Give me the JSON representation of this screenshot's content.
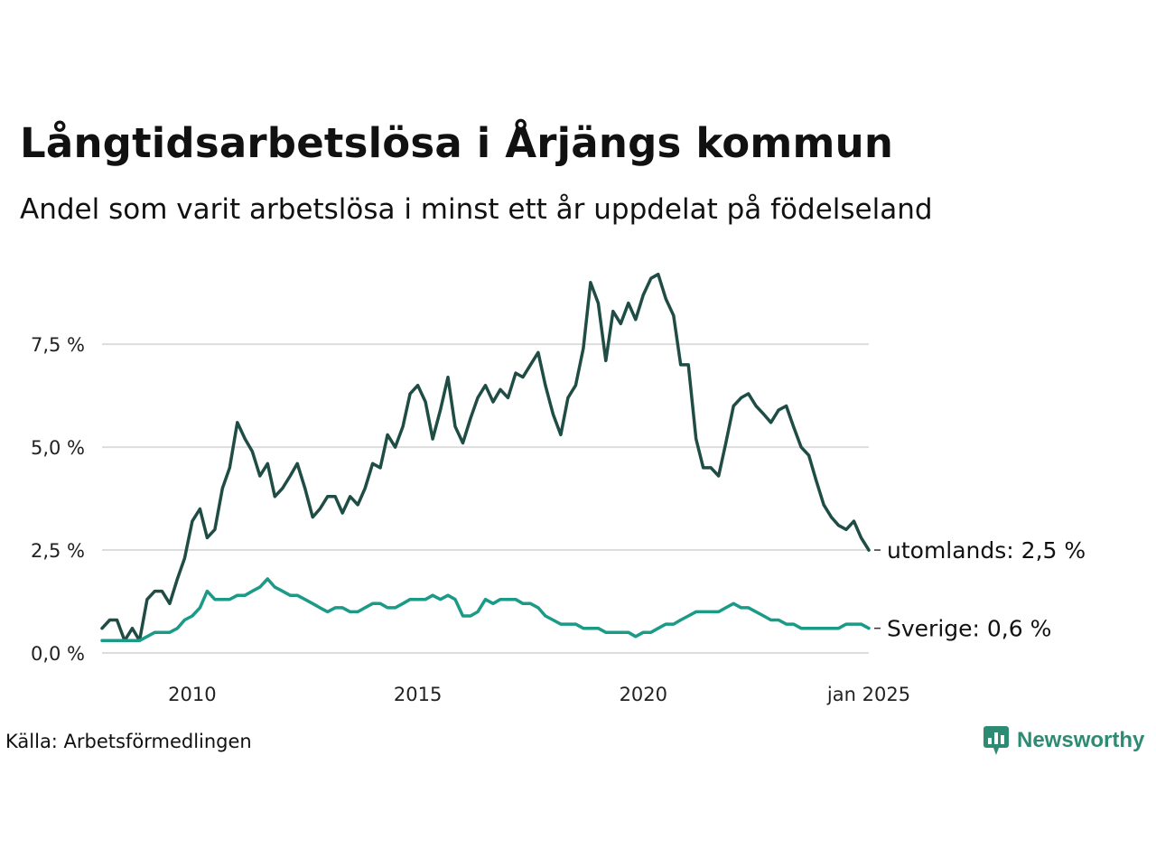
{
  "title": "Långtidsarbetslösa i Årjängs kommun",
  "subtitle": "Andel som varit arbetslösa i minst ett år uppdelat på födelseland",
  "source": "Källa: Arbetsförmedlingen",
  "brand": {
    "name": "Newsworthy",
    "logo_icon": "bar-chart-speech-bubble-icon"
  },
  "colors": {
    "utomlands": "#1f4d45",
    "sverige": "#1a9a87",
    "grid": "#dddddd",
    "brand": "#2e8b73"
  },
  "chart_data": {
    "type": "line",
    "title": "Långtidsarbetslösa i Årjängs kommun",
    "subtitle": "Andel som varit arbetslösa i minst ett år uppdelat på födelseland",
    "xlabel": "",
    "ylabel": "",
    "xlim": [
      2008.0,
      2025.0
    ],
    "ylim": [
      0,
      9.5
    ],
    "x_ticks": [
      {
        "x": 2010,
        "label": "2010"
      },
      {
        "x": 2015,
        "label": "2015"
      },
      {
        "x": 2020,
        "label": "2020"
      },
      {
        "x": 2025,
        "label": "jan 2025"
      }
    ],
    "y_ticks": [
      {
        "y": 0,
        "label": "0,0 %"
      },
      {
        "y": 2.5,
        "label": "2,5 %"
      },
      {
        "y": 5,
        "label": "5,0 %"
      },
      {
        "y": 7.5,
        "label": "7,5 %"
      }
    ],
    "grid": true,
    "series": [
      {
        "name": "utomlands",
        "end_label": "utomlands: 2,5 %",
        "color": "#1f4d45",
        "points": [
          [
            2008.0,
            0.6
          ],
          [
            2008.17,
            0.8
          ],
          [
            2008.33,
            0.8
          ],
          [
            2008.5,
            0.3
          ],
          [
            2008.67,
            0.6
          ],
          [
            2008.83,
            0.3
          ],
          [
            2009.0,
            1.3
          ],
          [
            2009.17,
            1.5
          ],
          [
            2009.33,
            1.5
          ],
          [
            2009.5,
            1.2
          ],
          [
            2009.67,
            1.8
          ],
          [
            2009.83,
            2.3
          ],
          [
            2010.0,
            3.2
          ],
          [
            2010.17,
            3.5
          ],
          [
            2010.33,
            2.8
          ],
          [
            2010.5,
            3.0
          ],
          [
            2010.67,
            4.0
          ],
          [
            2010.83,
            4.5
          ],
          [
            2011.0,
            5.6
          ],
          [
            2011.17,
            5.2
          ],
          [
            2011.33,
            4.9
          ],
          [
            2011.5,
            4.3
          ],
          [
            2011.67,
            4.6
          ],
          [
            2011.83,
            3.8
          ],
          [
            2012.0,
            4.0
          ],
          [
            2012.17,
            4.3
          ],
          [
            2012.33,
            4.6
          ],
          [
            2012.5,
            4.0
          ],
          [
            2012.67,
            3.3
          ],
          [
            2012.83,
            3.5
          ],
          [
            2013.0,
            3.8
          ],
          [
            2013.17,
            3.8
          ],
          [
            2013.33,
            3.4
          ],
          [
            2013.5,
            3.8
          ],
          [
            2013.67,
            3.6
          ],
          [
            2013.83,
            4.0
          ],
          [
            2014.0,
            4.6
          ],
          [
            2014.17,
            4.5
          ],
          [
            2014.33,
            5.3
          ],
          [
            2014.5,
            5.0
          ],
          [
            2014.67,
            5.5
          ],
          [
            2014.83,
            6.3
          ],
          [
            2015.0,
            6.5
          ],
          [
            2015.17,
            6.1
          ],
          [
            2015.33,
            5.2
          ],
          [
            2015.5,
            5.9
          ],
          [
            2015.67,
            6.7
          ],
          [
            2015.83,
            5.5
          ],
          [
            2016.0,
            5.1
          ],
          [
            2016.17,
            5.7
          ],
          [
            2016.33,
            6.2
          ],
          [
            2016.5,
            6.5
          ],
          [
            2016.67,
            6.1
          ],
          [
            2016.83,
            6.4
          ],
          [
            2017.0,
            6.2
          ],
          [
            2017.17,
            6.8
          ],
          [
            2017.33,
            6.7
          ],
          [
            2017.5,
            7.0
          ],
          [
            2017.67,
            7.3
          ],
          [
            2017.83,
            6.5
          ],
          [
            2018.0,
            5.8
          ],
          [
            2018.17,
            5.3
          ],
          [
            2018.33,
            6.2
          ],
          [
            2018.5,
            6.5
          ],
          [
            2018.67,
            7.4
          ],
          [
            2018.83,
            9.0
          ],
          [
            2019.0,
            8.5
          ],
          [
            2019.17,
            7.1
          ],
          [
            2019.33,
            8.3
          ],
          [
            2019.5,
            8.0
          ],
          [
            2019.67,
            8.5
          ],
          [
            2019.83,
            8.1
          ],
          [
            2020.0,
            8.7
          ],
          [
            2020.17,
            9.1
          ],
          [
            2020.33,
            9.2
          ],
          [
            2020.5,
            8.6
          ],
          [
            2020.67,
            8.2
          ],
          [
            2020.83,
            7.0
          ],
          [
            2021.0,
            7.0
          ],
          [
            2021.17,
            5.2
          ],
          [
            2021.33,
            4.5
          ],
          [
            2021.5,
            4.5
          ],
          [
            2021.67,
            4.3
          ],
          [
            2021.83,
            5.1
          ],
          [
            2022.0,
            6.0
          ],
          [
            2022.17,
            6.2
          ],
          [
            2022.33,
            6.3
          ],
          [
            2022.5,
            6.0
          ],
          [
            2022.67,
            5.8
          ],
          [
            2022.83,
            5.6
          ],
          [
            2023.0,
            5.9
          ],
          [
            2023.17,
            6.0
          ],
          [
            2023.33,
            5.5
          ],
          [
            2023.5,
            5.0
          ],
          [
            2023.67,
            4.8
          ],
          [
            2023.83,
            4.2
          ],
          [
            2024.0,
            3.6
          ],
          [
            2024.17,
            3.3
          ],
          [
            2024.33,
            3.1
          ],
          [
            2024.5,
            3.0
          ],
          [
            2024.67,
            3.2
          ],
          [
            2024.83,
            2.8
          ],
          [
            2025.0,
            2.5
          ]
        ]
      },
      {
        "name": "Sverige",
        "end_label": "Sverige: 0,6 %",
        "color": "#1a9a87",
        "points": [
          [
            2008.0,
            0.3
          ],
          [
            2008.17,
            0.3
          ],
          [
            2008.33,
            0.3
          ],
          [
            2008.5,
            0.3
          ],
          [
            2008.67,
            0.3
          ],
          [
            2008.83,
            0.3
          ],
          [
            2009.0,
            0.4
          ],
          [
            2009.17,
            0.5
          ],
          [
            2009.33,
            0.5
          ],
          [
            2009.5,
            0.5
          ],
          [
            2009.67,
            0.6
          ],
          [
            2009.83,
            0.8
          ],
          [
            2010.0,
            0.9
          ],
          [
            2010.17,
            1.1
          ],
          [
            2010.33,
            1.5
          ],
          [
            2010.5,
            1.3
          ],
          [
            2010.67,
            1.3
          ],
          [
            2010.83,
            1.3
          ],
          [
            2011.0,
            1.4
          ],
          [
            2011.17,
            1.4
          ],
          [
            2011.33,
            1.5
          ],
          [
            2011.5,
            1.6
          ],
          [
            2011.67,
            1.8
          ],
          [
            2011.83,
            1.6
          ],
          [
            2012.0,
            1.5
          ],
          [
            2012.17,
            1.4
          ],
          [
            2012.33,
            1.4
          ],
          [
            2012.5,
            1.3
          ],
          [
            2012.67,
            1.2
          ],
          [
            2012.83,
            1.1
          ],
          [
            2013.0,
            1.0
          ],
          [
            2013.17,
            1.1
          ],
          [
            2013.33,
            1.1
          ],
          [
            2013.5,
            1.0
          ],
          [
            2013.67,
            1.0
          ],
          [
            2013.83,
            1.1
          ],
          [
            2014.0,
            1.2
          ],
          [
            2014.17,
            1.2
          ],
          [
            2014.33,
            1.1
          ],
          [
            2014.5,
            1.1
          ],
          [
            2014.67,
            1.2
          ],
          [
            2014.83,
            1.3
          ],
          [
            2015.0,
            1.3
          ],
          [
            2015.17,
            1.3
          ],
          [
            2015.33,
            1.4
          ],
          [
            2015.5,
            1.3
          ],
          [
            2015.67,
            1.4
          ],
          [
            2015.83,
            1.3
          ],
          [
            2016.0,
            0.9
          ],
          [
            2016.17,
            0.9
          ],
          [
            2016.33,
            1.0
          ],
          [
            2016.5,
            1.3
          ],
          [
            2016.67,
            1.2
          ],
          [
            2016.83,
            1.3
          ],
          [
            2017.0,
            1.3
          ],
          [
            2017.17,
            1.3
          ],
          [
            2017.33,
            1.2
          ],
          [
            2017.5,
            1.2
          ],
          [
            2017.67,
            1.1
          ],
          [
            2017.83,
            0.9
          ],
          [
            2018.0,
            0.8
          ],
          [
            2018.17,
            0.7
          ],
          [
            2018.33,
            0.7
          ],
          [
            2018.5,
            0.7
          ],
          [
            2018.67,
            0.6
          ],
          [
            2018.83,
            0.6
          ],
          [
            2019.0,
            0.6
          ],
          [
            2019.17,
            0.5
          ],
          [
            2019.33,
            0.5
          ],
          [
            2019.5,
            0.5
          ],
          [
            2019.67,
            0.5
          ],
          [
            2019.83,
            0.4
          ],
          [
            2020.0,
            0.5
          ],
          [
            2020.17,
            0.5
          ],
          [
            2020.33,
            0.6
          ],
          [
            2020.5,
            0.7
          ],
          [
            2020.67,
            0.7
          ],
          [
            2020.83,
            0.8
          ],
          [
            2021.0,
            0.9
          ],
          [
            2021.17,
            1.0
          ],
          [
            2021.33,
            1.0
          ],
          [
            2021.5,
            1.0
          ],
          [
            2021.67,
            1.0
          ],
          [
            2021.83,
            1.1
          ],
          [
            2022.0,
            1.2
          ],
          [
            2022.17,
            1.1
          ],
          [
            2022.33,
            1.1
          ],
          [
            2022.5,
            1.0
          ],
          [
            2022.67,
            0.9
          ],
          [
            2022.83,
            0.8
          ],
          [
            2023.0,
            0.8
          ],
          [
            2023.17,
            0.7
          ],
          [
            2023.33,
            0.7
          ],
          [
            2023.5,
            0.6
          ],
          [
            2023.67,
            0.6
          ],
          [
            2023.83,
            0.6
          ],
          [
            2024.0,
            0.6
          ],
          [
            2024.17,
            0.6
          ],
          [
            2024.33,
            0.6
          ],
          [
            2024.5,
            0.7
          ],
          [
            2024.67,
            0.7
          ],
          [
            2024.83,
            0.7
          ],
          [
            2025.0,
            0.6
          ]
        ]
      }
    ]
  }
}
